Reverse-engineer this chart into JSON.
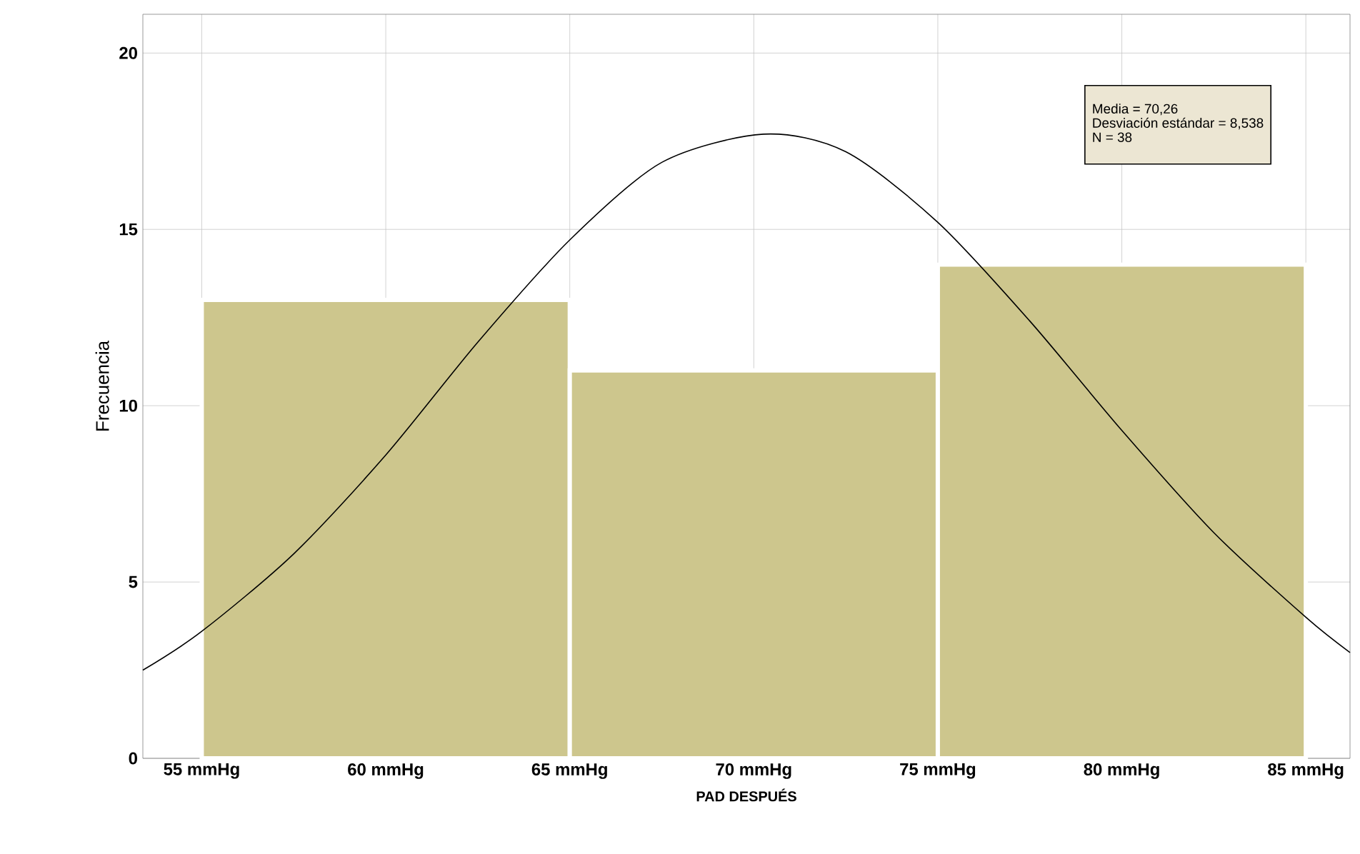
{
  "chart_data": {
    "type": "histogram",
    "xlabel": "PAD DESPUÉS",
    "ylabel": "Frecuencia",
    "bins": [
      55,
      65,
      75,
      85
    ],
    "values": [
      13,
      11,
      14
    ],
    "color": "#cdc68d",
    "series": [
      {
        "type": "line",
        "color": "#000000",
        "x": [
          53.4,
          55,
          57.5,
          60,
          62.5,
          65,
          67.5,
          70.26,
          72.5,
          75,
          77.5,
          80,
          82.5,
          85,
          86.2
        ],
        "values": [
          2.5,
          3.6,
          5.8,
          8.6,
          11.8,
          14.7,
          16.9,
          17.7,
          17.2,
          15.2,
          12.4,
          9.3,
          6.4,
          4.0,
          3.0
        ]
      }
    ],
    "xlim": [
      53.4,
      86.2
    ],
    "ylim": [
      0,
      21.1
    ],
    "xticks": [
      {
        "value": 55,
        "label": "55 mmHg"
      },
      {
        "value": 60,
        "label": "60 mmHg"
      },
      {
        "value": 65,
        "label": "65 mmHg"
      },
      {
        "value": 70,
        "label": "70 mmHg"
      },
      {
        "value": 75,
        "label": "75 mmHg"
      },
      {
        "value": 80,
        "label": "80 mmHg"
      },
      {
        "value": 85,
        "label": "85 mmHg"
      }
    ],
    "yticks": [
      0,
      5,
      10,
      15,
      20
    ],
    "grid": true,
    "annotations": [
      "Media = 70,26",
      "Desviación estándar = 8,538",
      "N = 38"
    ]
  }
}
